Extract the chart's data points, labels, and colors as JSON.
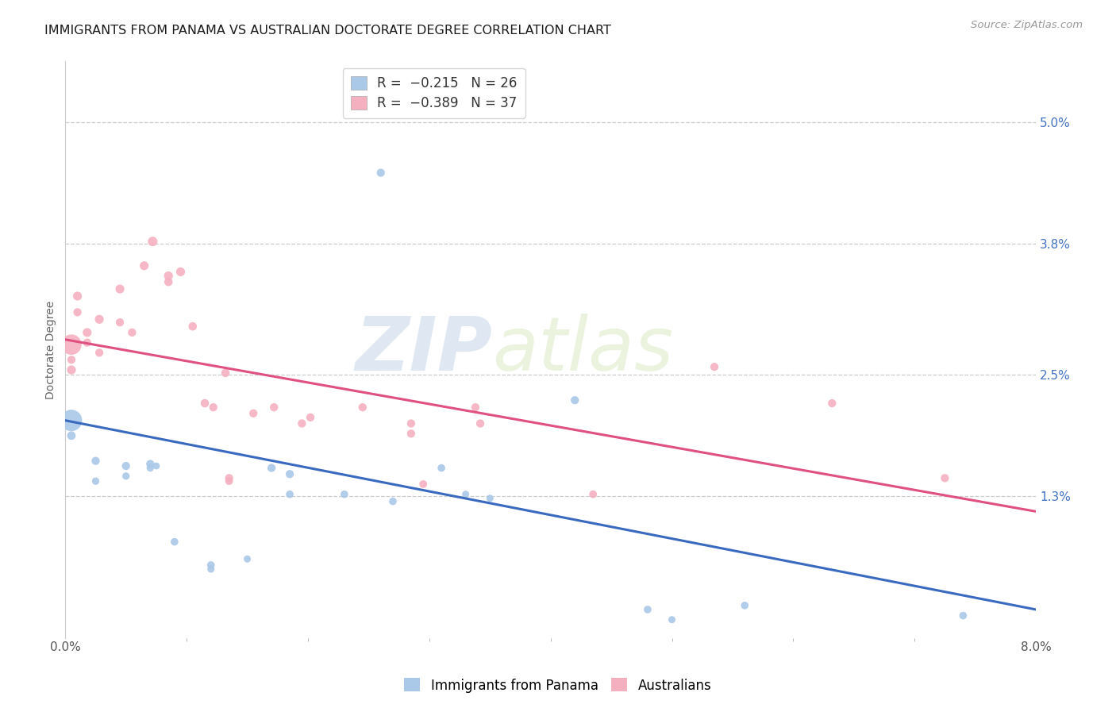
{
  "title": "IMMIGRANTS FROM PANAMA VS AUSTRALIAN DOCTORATE DEGREE CORRELATION CHART",
  "source": "Source: ZipAtlas.com",
  "ylabel": "Doctorate Degree",
  "ytick_values": [
    1.3,
    2.5,
    3.8,
    5.0
  ],
  "xlim": [
    0.0,
    8.0
  ],
  "ylim": [
    -0.1,
    5.6
  ],
  "watermark_zip": "ZIP",
  "watermark_atlas": "atlas",
  "panama_color": "#aac8e8",
  "australian_color": "#f5b0c0",
  "panama_line_color": "#3a6abf",
  "australian_line_color": "#e05080",
  "panama_line": {
    "x0": 0.0,
    "y0": 2.05,
    "x1": 8.0,
    "y1": 0.18
  },
  "australian_line": {
    "x0": 0.0,
    "y0": 2.85,
    "x1": 8.0,
    "y1": 1.15
  },
  "panama_points": [
    [
      0.05,
      2.05
    ],
    [
      0.05,
      1.9
    ],
    [
      0.25,
      1.65
    ],
    [
      0.25,
      1.45
    ],
    [
      0.5,
      1.6
    ],
    [
      0.5,
      1.5
    ],
    [
      0.7,
      1.62
    ],
    [
      0.7,
      1.58
    ],
    [
      0.75,
      1.6
    ],
    [
      0.9,
      0.85
    ],
    [
      1.2,
      0.62
    ],
    [
      1.2,
      0.58
    ],
    [
      1.5,
      0.68
    ],
    [
      1.7,
      1.58
    ],
    [
      1.85,
      1.52
    ],
    [
      1.85,
      1.32
    ],
    [
      2.3,
      1.32
    ],
    [
      2.6,
      4.5
    ],
    [
      2.7,
      1.25
    ],
    [
      3.1,
      1.58
    ],
    [
      3.3,
      1.32
    ],
    [
      3.5,
      1.28
    ],
    [
      4.2,
      2.25
    ],
    [
      4.8,
      0.18
    ],
    [
      5.0,
      0.08
    ],
    [
      5.6,
      0.22
    ],
    [
      7.4,
      0.12
    ]
  ],
  "australian_points": [
    [
      0.05,
      2.8
    ],
    [
      0.05,
      2.55
    ],
    [
      0.05,
      2.65
    ],
    [
      0.1,
      3.28
    ],
    [
      0.1,
      3.12
    ],
    [
      0.18,
      2.92
    ],
    [
      0.18,
      2.82
    ],
    [
      0.28,
      3.05
    ],
    [
      0.28,
      2.72
    ],
    [
      0.45,
      3.35
    ],
    [
      0.45,
      3.02
    ],
    [
      0.55,
      2.92
    ],
    [
      0.65,
      3.58
    ],
    [
      0.72,
      3.82
    ],
    [
      0.85,
      3.48
    ],
    [
      0.85,
      3.42
    ],
    [
      0.95,
      3.52
    ],
    [
      1.05,
      2.98
    ],
    [
      1.15,
      2.22
    ],
    [
      1.22,
      2.18
    ],
    [
      1.32,
      2.52
    ],
    [
      1.35,
      1.48
    ],
    [
      1.35,
      1.45
    ],
    [
      1.55,
      2.12
    ],
    [
      1.72,
      2.18
    ],
    [
      1.95,
      2.02
    ],
    [
      2.02,
      2.08
    ],
    [
      2.45,
      2.18
    ],
    [
      2.85,
      2.02
    ],
    [
      2.85,
      1.92
    ],
    [
      2.95,
      1.42
    ],
    [
      3.38,
      2.18
    ],
    [
      3.42,
      2.02
    ],
    [
      4.35,
      1.32
    ],
    [
      5.35,
      2.58
    ],
    [
      6.32,
      2.22
    ],
    [
      7.25,
      1.48
    ]
  ],
  "panama_bubble_sizes": [
    380,
    60,
    55,
    45,
    55,
    45,
    55,
    45,
    40,
    48,
    48,
    42,
    42,
    55,
    55,
    48,
    48,
    55,
    48,
    48,
    42,
    42,
    55,
    48,
    42,
    48,
    48
  ],
  "australian_bubble_sizes": [
    340,
    65,
    55,
    65,
    55,
    65,
    55,
    65,
    55,
    65,
    55,
    55,
    65,
    75,
    65,
    58,
    65,
    58,
    58,
    55,
    58,
    55,
    50,
    55,
    55,
    55,
    55,
    55,
    55,
    55,
    50,
    55,
    55,
    50,
    55,
    55,
    55
  ],
  "title_fontsize": 11.5,
  "source_fontsize": 9.5,
  "axis_label_fontsize": 10,
  "tick_fontsize": 11,
  "ytick_fontsize": 11,
  "legend_fontsize": 12
}
